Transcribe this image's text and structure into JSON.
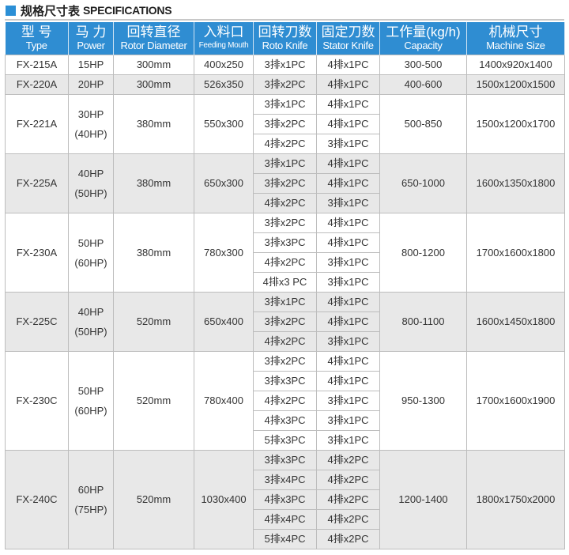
{
  "title": {
    "cn": "规格尺寸表",
    "en": "SPECIFICATIONS",
    "accent": "#2b8fd6"
  },
  "headers": [
    {
      "cn": "型 号",
      "en": "Type"
    },
    {
      "cn": "马 力",
      "en": "Power"
    },
    {
      "cn": "回转直径",
      "en": "Rotor Diameter"
    },
    {
      "cn": "入料口",
      "en": "Feeding Mouth"
    },
    {
      "cn": "回转刀数",
      "en": "Roto Knife"
    },
    {
      "cn": "固定刀数",
      "en": "Stator Knife"
    },
    {
      "cn": "工作量(kg/h)",
      "en": "Capacity"
    },
    {
      "cn": "机械尺寸",
      "en": "Machine Size"
    }
  ],
  "rows": [
    {
      "type": "FX-215A",
      "power": [
        "15HP"
      ],
      "rotor": "300mm",
      "feed": "400x250",
      "knives": [
        [
          "3排x1PC",
          "4排x1PC"
        ]
      ],
      "capacity": "300-500",
      "size": "1400x920x1400"
    },
    {
      "type": "FX-220A",
      "power": [
        "20HP"
      ],
      "rotor": "300mm",
      "feed": "526x350",
      "knives": [
        [
          "3排x2PC",
          "4排x1PC"
        ]
      ],
      "capacity": "400-600",
      "size": "1500x1200x1500"
    },
    {
      "type": "FX-221A",
      "power": [
        "30HP",
        "(40HP)"
      ],
      "rotor": "380mm",
      "feed": "550x300",
      "knives": [
        [
          "3排x1PC",
          "4排x1PC"
        ],
        [
          "3排x2PC",
          "4排x1PC"
        ],
        [
          "4排x2PC",
          "3排x1PC"
        ]
      ],
      "capacity": "500-850",
      "size": "1500x1200x1700"
    },
    {
      "type": "FX-225A",
      "power": [
        "40HP",
        "(50HP)"
      ],
      "rotor": "380mm",
      "feed": "650x300",
      "knives": [
        [
          "3排x1PC",
          "4排x1PC"
        ],
        [
          "3排x2PC",
          "4排x1PC"
        ],
        [
          "4排x2PC",
          "3排x1PC"
        ]
      ],
      "capacity": "650-1000",
      "size": "1600x1350x1800"
    },
    {
      "type": "FX-230A",
      "power": [
        "50HP",
        "(60HP)"
      ],
      "rotor": "380mm",
      "feed": "780x300",
      "knives": [
        [
          "3排x2PC",
          "4排x1PC"
        ],
        [
          "3排x3PC",
          "4排x1PC"
        ],
        [
          "4排x2PC",
          "3排x1PC"
        ],
        [
          "4排x3 PC",
          "3排x1PC"
        ]
      ],
      "capacity": "800-1200",
      "size": "1700x1600x1800"
    },
    {
      "type": "FX-225C",
      "power": [
        "40HP",
        "(50HP)"
      ],
      "rotor": "520mm",
      "feed": "650x400",
      "knives": [
        [
          "3排x1PC",
          "4排x1PC"
        ],
        [
          "3排x2PC",
          "4排x1PC"
        ],
        [
          "4排x2PC",
          "3排x1PC"
        ]
      ],
      "capacity": "800-1100",
      "size": "1600x1450x1800"
    },
    {
      "type": "FX-230C",
      "power": [
        "50HP",
        "(60HP)"
      ],
      "rotor": "520mm",
      "feed": "780x400",
      "knives": [
        [
          "3排x2PC",
          "4排x1PC"
        ],
        [
          "3排x3PC",
          "4排x1PC"
        ],
        [
          "4排x2PC",
          "3排x1PC"
        ],
        [
          "4排x3PC",
          "3排x1PC"
        ],
        [
          "5排x3PC",
          "3排x1PC"
        ]
      ],
      "capacity": "950-1300",
      "size": "1700x1600x1900"
    },
    {
      "type": "FX-240C",
      "power": [
        "60HP",
        "(75HP)"
      ],
      "rotor": "520mm",
      "feed": "1030x400",
      "knives": [
        [
          "3排x3PC",
          "4排x2PC"
        ],
        [
          "3排x4PC",
          "4排x2PC"
        ],
        [
          "4排x3PC",
          "4排x2PC"
        ],
        [
          "4排x4PC",
          "4排x2PC"
        ],
        [
          "5排x4PC",
          "4排x2PC"
        ]
      ],
      "capacity": "1200-1400",
      "size": "1800x1750x2000"
    }
  ]
}
